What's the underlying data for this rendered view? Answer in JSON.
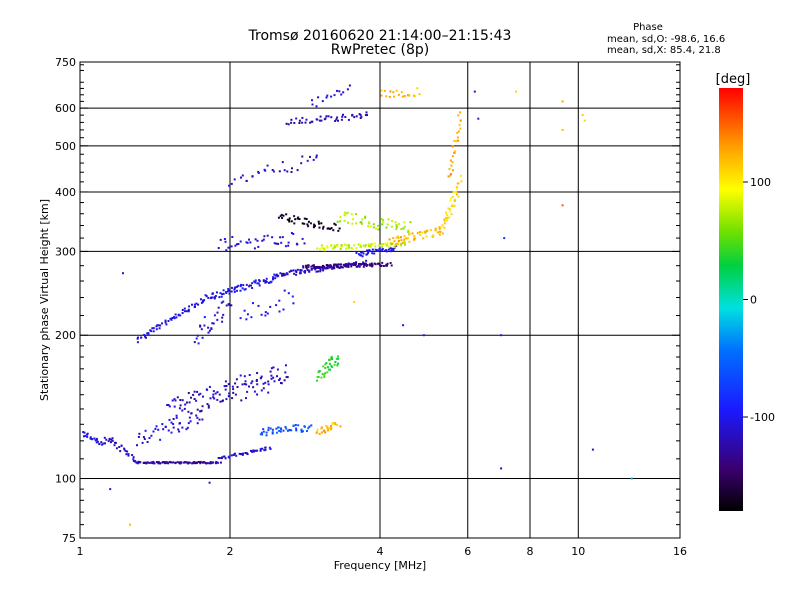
{
  "chart_data": {
    "type": "scatter",
    "title": "Tromsø 20160620 21:14:00–21:15:43",
    "subtitle": "RwPretec (8p)",
    "xlabel": "Frequency [MHz]",
    "ylabel": "Stationary phase Virtual Height [km]",
    "x_scale": "log",
    "y_scale": "log",
    "xlim": [
      1,
      16
    ],
    "ylim": [
      75,
      750
    ],
    "x_ticks": [
      1,
      2,
      4,
      6,
      8,
      10,
      16
    ],
    "x_tick_labels": [
      "1",
      "2",
      "4",
      "6",
      "8",
      "10",
      "16"
    ],
    "x_grid": [
      2,
      4,
      6,
      8,
      10
    ],
    "y_ticks": [
      75,
      100,
      200,
      300,
      400,
      500,
      600,
      750
    ],
    "y_tick_labels": [
      "75",
      "100",
      "200",
      "300",
      "400",
      "500",
      "600",
      "750"
    ],
    "y_grid": [
      100,
      200,
      300,
      400,
      500,
      600
    ],
    "grid": true,
    "stats": {
      "header": "Phase",
      "line_o": "mean, sd,O:  -98.6, 16.6",
      "line_x": "mean, sd,X:  85.4, 21.8"
    },
    "colorbar": {
      "label": "[deg]",
      "range": [
        -180,
        180
      ],
      "ticks": [
        -100,
        0,
        100
      ],
      "tick_labels": [
        "-100",
        "0",
        "100"
      ]
    },
    "traces": [
      {
        "x0": 1.0,
        "x1": 1.12,
        "y0": 125,
        "y1": 118,
        "phase": -105,
        "n": 25,
        "spread": 0.012
      },
      {
        "x0": 1.12,
        "x1": 1.3,
        "y0": 122,
        "y1": 110,
        "phase": -115,
        "n": 30,
        "spread": 0.018
      },
      {
        "x0": 1.3,
        "x1": 1.9,
        "y0": 108,
        "y1": 108,
        "phase": -128,
        "n": 90,
        "spread": 0.004
      },
      {
        "x0": 1.9,
        "x1": 2.4,
        "y0": 110,
        "y1": 116,
        "phase": -110,
        "n": 40,
        "spread": 0.006
      },
      {
        "x0": 1.3,
        "x1": 1.75,
        "y0": 120,
        "y1": 135,
        "phase": -110,
        "n": 40,
        "spread": 0.035
      },
      {
        "x0": 1.5,
        "x1": 2.6,
        "y0": 140,
        "y1": 165,
        "phase": -115,
        "n": 120,
        "spread": 0.06
      },
      {
        "x0": 2.3,
        "x1": 2.9,
        "y0": 125,
        "y1": 128,
        "phase": -60,
        "n": 45,
        "spread": 0.02
      },
      {
        "x0": 3.0,
        "x1": 3.3,
        "y0": 165,
        "y1": 180,
        "phase": 40,
        "n": 35,
        "spread": 0.03
      },
      {
        "x0": 3.0,
        "x1": 3.3,
        "y0": 125,
        "y1": 130,
        "phase": 120,
        "n": 30,
        "spread": 0.015
      },
      {
        "x0": 1.3,
        "x1": 1.8,
        "y0": 195,
        "y1": 240,
        "phase": -105,
        "n": 60,
        "spread": 0.012
      },
      {
        "x0": 1.8,
        "x1": 2.5,
        "y0": 240,
        "y1": 265,
        "phase": -100,
        "n": 70,
        "spread": 0.015
      },
      {
        "x0": 2.5,
        "x1": 3.8,
        "y0": 268,
        "y1": 285,
        "phase": -115,
        "n": 90,
        "spread": 0.012
      },
      {
        "x0": 2.8,
        "x1": 4.2,
        "y0": 278,
        "y1": 282,
        "phase": -140,
        "n": 90,
        "spread": 0.008
      },
      {
        "x0": 3.6,
        "x1": 4.3,
        "y0": 295,
        "y1": 305,
        "phase": -105,
        "n": 40,
        "spread": 0.012
      },
      {
        "x0": 3.0,
        "x1": 4.5,
        "y0": 305,
        "y1": 310,
        "phase": 80,
        "n": 70,
        "spread": 0.012
      },
      {
        "x0": 4.2,
        "x1": 5.3,
        "y0": 315,
        "y1": 330,
        "phase": 120,
        "n": 50,
        "spread": 0.02
      },
      {
        "x0": 5.3,
        "x1": 5.8,
        "y0": 330,
        "y1": 420,
        "phase": 110,
        "n": 40,
        "spread": 0.03
      },
      {
        "x0": 5.5,
        "x1": 5.8,
        "y0": 420,
        "y1": 580,
        "phase": 125,
        "n": 25,
        "spread": 0.03
      },
      {
        "x0": 2.5,
        "x1": 3.3,
        "y0": 355,
        "y1": 335,
        "phase": -170,
        "n": 45,
        "spread": 0.02
      },
      {
        "x0": 3.3,
        "x1": 4.6,
        "y0": 355,
        "y1": 335,
        "phase": 70,
        "n": 50,
        "spread": 0.03
      },
      {
        "x0": 1.9,
        "x1": 2.8,
        "y0": 310,
        "y1": 320,
        "phase": -110,
        "n": 40,
        "spread": 0.035
      },
      {
        "x0": 2.0,
        "x1": 3.0,
        "y0": 420,
        "y1": 470,
        "phase": -115,
        "n": 30,
        "spread": 0.03
      },
      {
        "x0": 2.6,
        "x1": 3.8,
        "y0": 560,
        "y1": 580,
        "phase": -120,
        "n": 45,
        "spread": 0.015
      },
      {
        "x0": 2.9,
        "x1": 3.5,
        "y0": 610,
        "y1": 660,
        "phase": -110,
        "n": 15,
        "spread": 0.02
      },
      {
        "x0": 4.0,
        "x1": 4.8,
        "y0": 640,
        "y1": 650,
        "phase": 120,
        "n": 20,
        "spread": 0.02
      },
      {
        "x0": 1.7,
        "x1": 2.0,
        "y0": 200,
        "y1": 230,
        "phase": -110,
        "n": 30,
        "spread": 0.06
      },
      {
        "x0": 2.1,
        "x1": 2.7,
        "y0": 220,
        "y1": 240,
        "phase": -100,
        "n": 20,
        "spread": 0.05
      }
    ],
    "scatter_points": [
      [
        1.22,
        270,
        -110
      ],
      [
        1.15,
        95,
        -100
      ],
      [
        1.82,
        98,
        -115
      ],
      [
        1.26,
        80,
        120
      ],
      [
        3.55,
        235,
        110
      ],
      [
        4.45,
        210,
        -105
      ],
      [
        4.9,
        200,
        -100
      ],
      [
        6.2,
        650,
        -110
      ],
      [
        7.0,
        200,
        -100
      ],
      [
        7.1,
        320,
        -80
      ],
      [
        7.0,
        105,
        -120
      ],
      [
        7.5,
        650,
        110
      ],
      [
        9.3,
        620,
        130
      ],
      [
        9.3,
        540,
        120
      ],
      [
        9.3,
        375,
        150
      ],
      [
        10.2,
        580,
        115
      ],
      [
        10.3,
        565,
        110
      ],
      [
        10.7,
        115,
        -120
      ],
      [
        12.8,
        100,
        -20
      ],
      [
        6.3,
        570,
        -100
      ]
    ]
  }
}
